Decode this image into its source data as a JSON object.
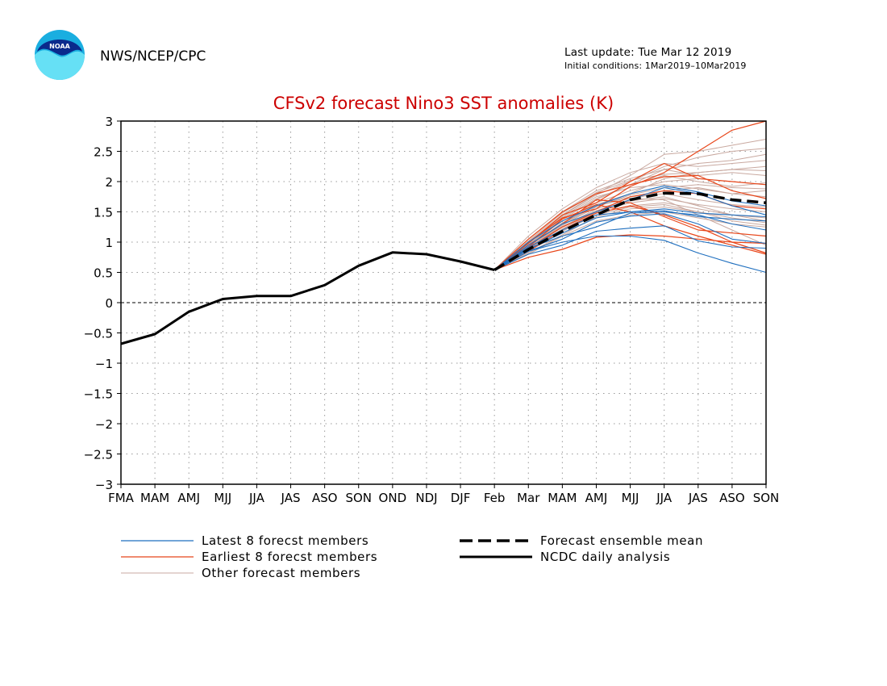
{
  "header": {
    "org": "NWS/NCEP/CPC",
    "last_update": "Last update: Tue Mar 12 2019",
    "initial_conditions": "Initial conditions: 1Mar2019–10Mar2019",
    "logo_text": "NOAA"
  },
  "chart_data": {
    "type": "line",
    "title": "CFSv2 forecast Nino3 SST anomalies (K)",
    "xlabel": "",
    "ylabel": "",
    "categories": [
      "FMA",
      "MAM",
      "AMJ",
      "MJJ",
      "JJA",
      "JAS",
      "ASO",
      "SON",
      "OND",
      "NDJ",
      "DJF",
      "Feb",
      "Mar",
      "MAM",
      "AMJ",
      "MJJ",
      "JJA",
      "JAS",
      "ASO",
      "SON"
    ],
    "ylim": [
      -3,
      3
    ],
    "yticks": [
      "3",
      "2.5",
      "2",
      "1.5",
      "1",
      "0.5",
      "0",
      "−0.5",
      "−1",
      "−1.5",
      "−2",
      "−2.5",
      "−3"
    ],
    "ytick_values": [
      3,
      2.5,
      2,
      1.5,
      1,
      0.5,
      0,
      -0.5,
      -1,
      -1.5,
      -2,
      -2.5,
      -3
    ],
    "grid": true,
    "colors": {
      "latest": "#1f6fbf",
      "earliest": "#e8461a",
      "other": "#c9a9a0",
      "mean": "#000000",
      "analysis": "#000000",
      "title": "#cc0000"
    },
    "legend": [
      {
        "key": "latest",
        "label": "Latest 8 forecst members"
      },
      {
        "key": "earliest",
        "label": "Earliest 8 forecst members"
      },
      {
        "key": "other",
        "label": "Other forecast members"
      },
      {
        "key": "mean",
        "label": "Forecast ensemble mean"
      },
      {
        "key": "analysis",
        "label": "NCDC daily analysis"
      }
    ],
    "analysis": {
      "x": [
        0,
        1,
        2,
        3,
        4,
        5,
        6,
        7,
        8,
        9,
        10,
        11
      ],
      "y": [
        -0.68,
        -0.52,
        -0.15,
        0.06,
        0.11,
        0.11,
        0.29,
        0.61,
        0.83,
        0.8,
        0.68,
        0.54
      ]
    },
    "ensemble_mean": {
      "x": [
        11,
        12,
        13,
        14,
        15,
        16,
        17,
        18,
        19
      ],
      "y": [
        0.54,
        0.88,
        1.18,
        1.45,
        1.7,
        1.81,
        1.8,
        1.7,
        1.65
      ]
    },
    "member_x": [
      11,
      12,
      13,
      14,
      15,
      16,
      17,
      18,
      19
    ],
    "latest_members": [
      [
        0.54,
        0.85,
        1.0,
        1.1,
        1.1,
        1.03,
        0.82,
        0.65,
        0.5
      ],
      [
        0.54,
        0.9,
        1.1,
        1.25,
        1.48,
        1.5,
        1.45,
        1.3,
        1.2
      ],
      [
        0.54,
        0.95,
        1.3,
        1.5,
        1.7,
        1.9,
        1.8,
        1.6,
        1.45
      ],
      [
        0.54,
        0.8,
        0.95,
        1.18,
        1.23,
        1.27,
        1.02,
        0.92,
        0.9
      ],
      [
        0.54,
        0.88,
        1.15,
        1.4,
        1.5,
        1.55,
        1.48,
        1.45,
        1.42
      ],
      [
        0.54,
        1.0,
        1.35,
        1.6,
        1.8,
        1.93,
        1.83,
        1.68,
        1.6
      ],
      [
        0.54,
        0.85,
        1.05,
        1.33,
        1.43,
        1.47,
        1.3,
        1.05,
        0.98
      ],
      [
        0.54,
        0.92,
        1.2,
        1.45,
        1.5,
        1.52,
        1.42,
        1.38,
        1.35
      ]
    ],
    "earliest_members": [
      [
        0.54,
        0.75,
        0.88,
        1.08,
        1.12,
        1.1,
        1.05,
        1.0,
        0.98
      ],
      [
        0.54,
        0.92,
        1.38,
        1.62,
        1.5,
        1.27,
        1.1,
        0.95,
        0.8
      ],
      [
        0.54,
        1.0,
        1.4,
        1.55,
        1.92,
        2.15,
        2.5,
        2.85,
        3.0
      ],
      [
        0.54,
        0.95,
        1.3,
        1.7,
        1.65,
        1.42,
        1.2,
        1.15,
        1.1
      ],
      [
        0.54,
        0.98,
        1.45,
        1.65,
        2.0,
        2.3,
        2.05,
        2.0,
        1.95
      ],
      [
        0.54,
        0.85,
        1.2,
        1.48,
        1.6,
        1.45,
        1.25,
        1.0,
        0.82
      ],
      [
        0.54,
        1.05,
        1.5,
        1.8,
        1.95,
        2.08,
        2.1,
        1.85,
        1.72
      ],
      [
        0.54,
        0.9,
        1.25,
        1.5,
        1.75,
        1.85,
        1.8,
        1.6,
        1.55
      ]
    ],
    "other_members": [
      [
        0.54,
        1.0,
        1.45,
        1.8,
        2.1,
        2.45,
        2.5,
        2.6,
        2.7
      ],
      [
        0.54,
        0.95,
        1.38,
        1.7,
        1.95,
        2.2,
        2.3,
        2.35,
        2.45
      ],
      [
        0.54,
        0.9,
        1.3,
        1.62,
        1.8,
        2.05,
        2.15,
        2.2,
        2.25
      ],
      [
        0.54,
        1.05,
        1.5,
        1.85,
        2.05,
        2.2,
        2.1,
        2.15,
        2.1
      ],
      [
        0.54,
        0.88,
        1.25,
        1.55,
        1.7,
        1.85,
        1.9,
        1.8,
        1.75
      ],
      [
        0.54,
        0.92,
        1.32,
        1.6,
        1.75,
        1.8,
        1.7,
        1.62,
        1.58
      ],
      [
        0.54,
        0.85,
        1.2,
        1.48,
        1.6,
        1.65,
        1.55,
        1.45,
        1.4
      ],
      [
        0.54,
        0.98,
        1.42,
        1.75,
        1.9,
        1.95,
        1.88,
        1.8,
        1.85
      ],
      [
        0.54,
        0.8,
        1.1,
        1.35,
        1.45,
        1.5,
        1.4,
        1.3,
        1.25
      ],
      [
        0.54,
        0.95,
        1.35,
        1.65,
        1.85,
        2.0,
        2.05,
        2.0,
        1.95
      ],
      [
        0.54,
        1.1,
        1.55,
        1.9,
        2.15,
        2.3,
        2.25,
        2.3,
        2.35
      ],
      [
        0.54,
        0.9,
        1.28,
        1.58,
        1.78,
        1.9,
        1.95,
        1.9,
        1.88
      ],
      [
        0.54,
        0.82,
        1.12,
        1.42,
        1.55,
        1.58,
        1.5,
        1.4,
        1.32
      ],
      [
        0.54,
        0.87,
        1.22,
        1.5,
        1.65,
        1.72,
        1.62,
        1.55,
        1.5
      ],
      [
        0.54,
        1.02,
        1.48,
        1.82,
        2.02,
        2.12,
        2.15,
        2.2,
        2.18
      ],
      [
        0.54,
        0.93,
        1.3,
        1.6,
        1.72,
        1.7,
        1.45,
        1.2,
        0.95
      ],
      [
        0.54,
        0.96,
        1.4,
        1.72,
        1.95,
        2.1,
        2.0,
        1.92,
        1.98
      ],
      [
        0.54,
        0.84,
        1.18,
        1.45,
        1.58,
        1.62,
        1.5,
        1.35,
        1.28
      ],
      [
        0.54,
        0.99,
        1.44,
        1.78,
        2.0,
        2.25,
        2.4,
        2.5,
        2.55
      ],
      [
        0.54,
        0.91,
        1.26,
        1.52,
        1.68,
        1.75,
        1.6,
        1.45,
        1.35
      ]
    ]
  }
}
